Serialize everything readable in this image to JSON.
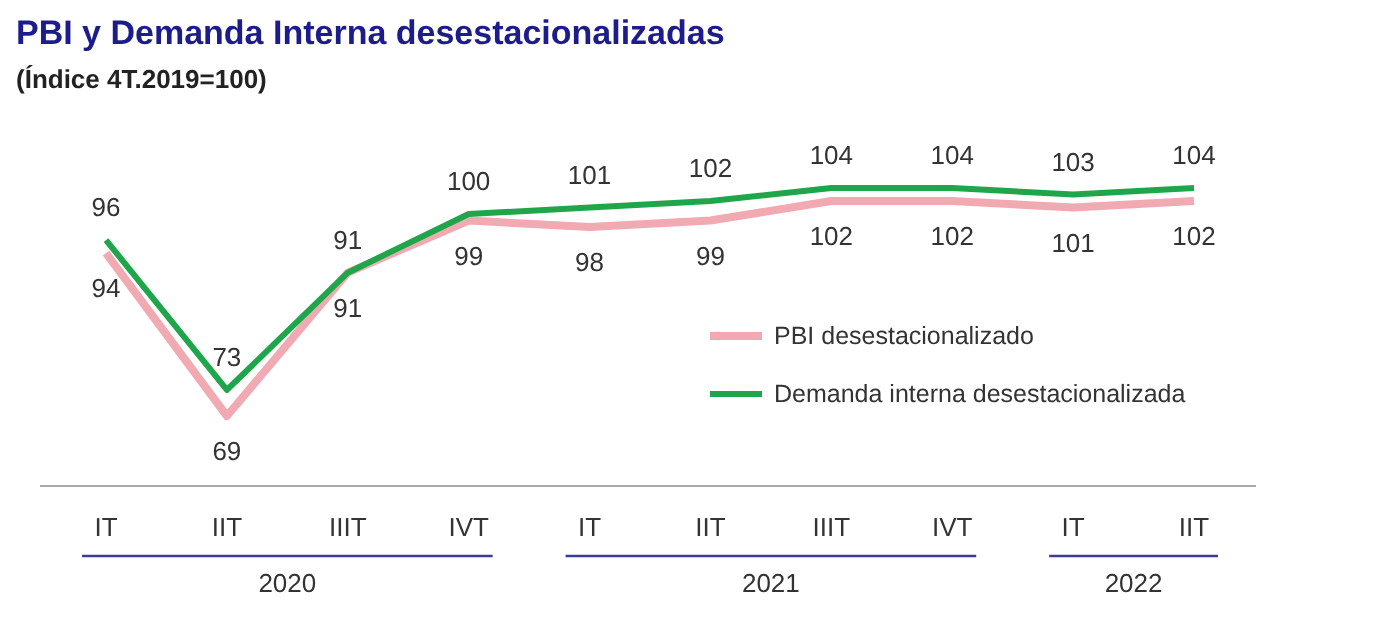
{
  "chart_data": {
    "type": "line",
    "title": "PBI y Demanda Interna desestacionalizadas",
    "subtitle": "(Índice 4T.2019=100)",
    "categories": [
      "IT",
      "IIT",
      "IIIT",
      "IVT",
      "IT",
      "IIT",
      "IIIT",
      "IVT",
      "IT",
      "IIT"
    ],
    "series": [
      {
        "name": "PBI desestacionalizado",
        "color": "#f2aab2",
        "values": [
          94,
          69,
          91,
          99,
          98,
          99,
          102,
          102,
          101,
          102
        ]
      },
      {
        "name": "Demanda interna desestacionalizada",
        "color": "#1fa64a",
        "values": [
          96,
          73,
          91,
          100,
          101,
          102,
          104,
          104,
          103,
          104
        ]
      }
    ],
    "annotations": [
      "2020",
      "2021",
      "2022"
    ],
    "data_labels": true,
    "legend": "right",
    "marker": "none",
    "line_style": "solid",
    "grid": false
  }
}
